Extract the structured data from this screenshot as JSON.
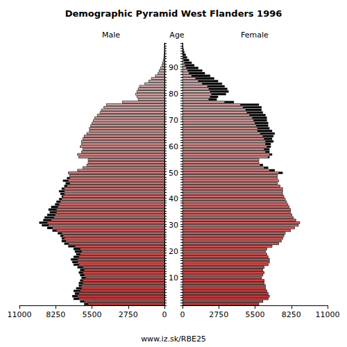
{
  "chart_data": {
    "type": "population_pyramid",
    "title": "Demographic Pyramid West Flanders 1996",
    "y_label": "Age",
    "footer": "www.iz.sk/RBE25",
    "orientation": "horizontal",
    "categories": [
      null,
      null,
      null,
      null,
      null,
      null,
      null,
      null,
      null,
      null,
      "10",
      null,
      null,
      null,
      null,
      null,
      null,
      null,
      null,
      null,
      "20",
      null,
      null,
      null,
      null,
      null,
      null,
      null,
      null,
      null,
      "30",
      null,
      null,
      null,
      null,
      null,
      null,
      null,
      null,
      null,
      "40",
      null,
      null,
      null,
      null,
      null,
      null,
      null,
      null,
      null,
      "50",
      null,
      null,
      null,
      null,
      null,
      null,
      null,
      null,
      null,
      "60",
      null,
      null,
      null,
      null,
      null,
      null,
      null,
      null,
      null,
      "70",
      null,
      null,
      null,
      null,
      null,
      null,
      null,
      null,
      null,
      "80",
      null,
      null,
      null,
      null,
      null,
      null,
      null,
      null,
      null,
      "90",
      null,
      null,
      null,
      null,
      null,
      null,
      null,
      null,
      null
    ],
    "series": [
      {
        "name": "Male",
        "color": "#cc3b3b",
        "values": [
          6100,
          6400,
          6900,
          7000,
          6800,
          6900,
          6700,
          6500,
          6500,
          6400,
          6300,
          6400,
          6500,
          6400,
          6600,
          6900,
          7000,
          7100,
          6900,
          6700,
          6800,
          6900,
          7300,
          7600,
          7800,
          7800,
          7900,
          8100,
          8500,
          8900,
          9300,
          9500,
          9200,
          9100,
          8900,
          8700,
          8800,
          8600,
          8300,
          8200,
          8000,
          7800,
          7900,
          8000,
          7800,
          7600,
          7500,
          7700,
          7400,
          7200,
          7300,
          6600,
          6200,
          5900,
          5800,
          5800,
          6500,
          6600,
          6300,
          6200,
          6400,
          6300,
          6300,
          6200,
          6100,
          5900,
          5700,
          5700,
          5600,
          5500,
          5400,
          5300,
          5100,
          4900,
          4800,
          4600,
          4400,
          3200,
          2000,
          2100,
          2200,
          2100,
          2000,
          1900,
          1500,
          1200,
          1000,
          700,
          500,
          400,
          300,
          200,
          150,
          100,
          60,
          40,
          20,
          10,
          5,
          3
        ]
      },
      {
        "name": "Female",
        "color": "#cc3b3b",
        "values": [
          5800,
          6100,
          6500,
          6600,
          6500,
          6400,
          6300,
          6300,
          6200,
          6200,
          6000,
          6100,
          6200,
          6100,
          6200,
          6500,
          6600,
          6600,
          6500,
          6400,
          6300,
          6400,
          6800,
          7300,
          7500,
          7600,
          7700,
          7800,
          8200,
          8500,
          8800,
          8900,
          8600,
          8400,
          8300,
          8200,
          8200,
          8100,
          8000,
          7900,
          7800,
          7700,
          7600,
          7600,
          7600,
          7400,
          7200,
          7300,
          7200,
          7200,
          7600,
          7000,
          6500,
          6100,
          5800,
          5800,
          6600,
          6800,
          6600,
          6600,
          6700,
          6700,
          6900,
          6800,
          6900,
          7000,
          6800,
          6600,
          6500,
          6500,
          6400,
          6400,
          6300,
          6100,
          6000,
          6000,
          5800,
          3900,
          2600,
          2700,
          3300,
          3500,
          3400,
          3200,
          3000,
          2700,
          2400,
          2100,
          1700,
          1500,
          1200,
          900,
          700,
          500,
          350,
          250,
          150,
          90,
          50,
          30
        ]
      }
    ],
    "xlim": [
      0,
      11000
    ],
    "xticks": [
      0,
      2750,
      5500,
      8250,
      11000
    ],
    "grid": false
  }
}
